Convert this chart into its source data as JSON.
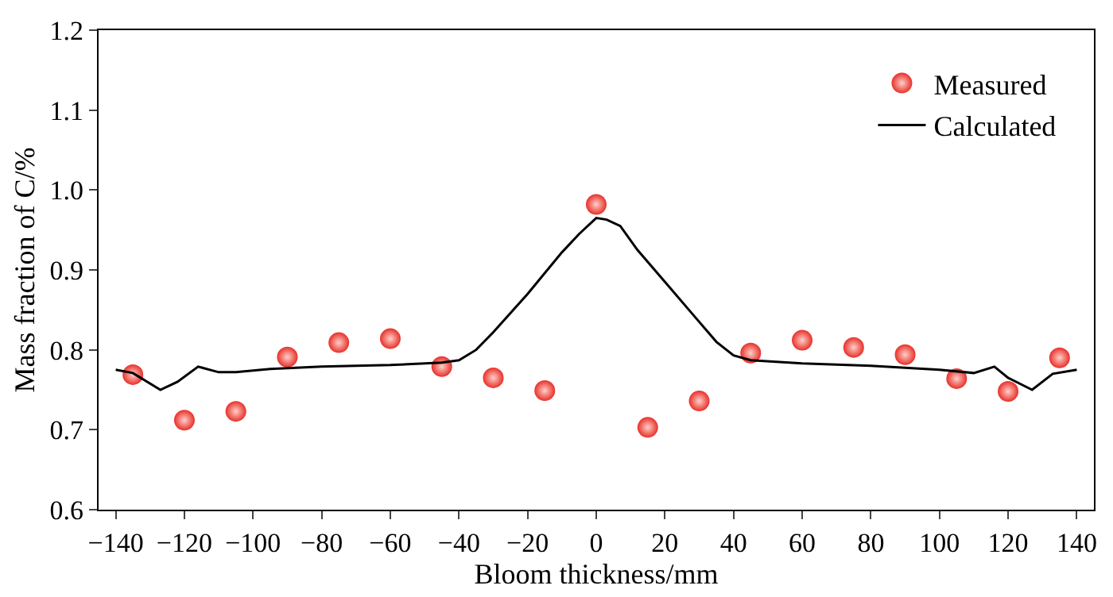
{
  "chart_data": {
    "type": "scatter",
    "xlabel": "Bloom thickness/mm",
    "ylabel": "Mass fraction of C/%",
    "xlim": [
      -145,
      145
    ],
    "xticks": [
      {
        "value": -140,
        "label": "−140"
      },
      {
        "value": -120,
        "label": "−120"
      },
      {
        "value": -100,
        "label": "−100"
      },
      {
        "value": -80,
        "label": "−80"
      },
      {
        "value": -60,
        "label": "−60"
      },
      {
        "value": -40,
        "label": "−40"
      },
      {
        "value": -20,
        "label": "−20"
      },
      0,
      20,
      40,
      60,
      80,
      100,
      120,
      140
    ],
    "ylim": [
      0.6,
      1.2
    ],
    "yticks": [
      {
        "value": 0.6,
        "label": "0.6"
      },
      {
        "value": 0.7,
        "label": "0.7"
      },
      {
        "value": 0.8,
        "label": "0.8"
      },
      {
        "value": 0.9,
        "label": "0.9"
      },
      {
        "value": 1.0,
        "label": "1.0"
      },
      {
        "value": 1.1,
        "label": "1.1"
      },
      {
        "value": 1.2,
        "label": "1.2"
      }
    ],
    "legend": "top right",
    "series": [
      {
        "name": "Measured",
        "marker": "circle",
        "color": "#e8302a",
        "x": [
          -135,
          -120,
          -105,
          -90,
          -75,
          -60,
          -45,
          -30,
          -15,
          0,
          15,
          30,
          45,
          60,
          75,
          90,
          105,
          120,
          135
        ],
        "values": [
          0.769,
          0.712,
          0.723,
          0.791,
          0.809,
          0.814,
          0.779,
          0.765,
          0.749,
          0.982,
          0.703,
          0.736,
          0.796,
          0.812,
          0.803,
          0.794,
          0.764,
          0.748,
          0.79
        ]
      },
      {
        "name": "Calculated",
        "type": "line",
        "marker": "none",
        "line_style": "solid",
        "color": "#000000",
        "x": [
          -140,
          -135,
          -127,
          -122,
          -116,
          -110,
          -105,
          -95,
          -80,
          -60,
          -45,
          -40,
          -35,
          -30,
          -20,
          -10,
          -5,
          0,
          3,
          7,
          12,
          20,
          28,
          35,
          40,
          45,
          60,
          80,
          100,
          110,
          116,
          120,
          127,
          133,
          140
        ],
        "values": [
          0.775,
          0.771,
          0.75,
          0.76,
          0.779,
          0.772,
          0.772,
          0.776,
          0.779,
          0.781,
          0.784,
          0.787,
          0.8,
          0.822,
          0.87,
          0.922,
          0.945,
          0.965,
          0.963,
          0.955,
          0.925,
          0.885,
          0.845,
          0.81,
          0.793,
          0.787,
          0.783,
          0.78,
          0.775,
          0.771,
          0.779,
          0.765,
          0.75,
          0.77,
          0.775
        ]
      }
    ]
  }
}
